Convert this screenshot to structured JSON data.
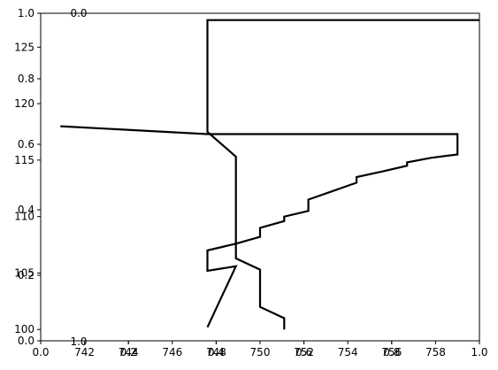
{
  "chart_data": {
    "type": "line",
    "title": "",
    "xlabel": "",
    "ylabel": "",
    "grid": false,
    "legend": "none",
    "line_color": "#000000",
    "axes_color": "#000000",
    "background": "#ffffff",
    "xlim": [
      740,
      760
    ],
    "ylim": [
      99,
      128
    ],
    "x_ticks": [
      742,
      744,
      746,
      748,
      750,
      752,
      754,
      756,
      758
    ],
    "y_ticks": [
      100,
      105,
      110,
      115,
      120,
      125
    ],
    "x_tick_labels": [
      "742",
      "744",
      "746",
      "748",
      "750",
      "752",
      "754",
      "756",
      "758"
    ],
    "y_tick_labels": [
      "100",
      "105",
      "110",
      "115",
      "120",
      "125"
    ],
    "overlay_axes": {
      "x_ticks": [
        0.0,
        0.2,
        0.4,
        0.6,
        0.8,
        1.0
      ],
      "y_ticks": [
        0.0,
        0.2,
        0.4,
        0.6,
        0.8,
        1.0
      ],
      "x_tick_labels": [
        "0.0",
        "0.2",
        "0.4",
        "0.6",
        "0.8",
        "1.0"
      ],
      "y_tick_labels": [
        "0.0",
        "0.2",
        "0.4",
        "0.6",
        "0.8",
        "1.0"
      ]
    },
    "stray_labels": [
      "0.0",
      "1.0"
    ],
    "series": [
      {
        "x": [
          767.7,
          747.6,
          747.6
        ],
        "y": [
          127.4,
          127.4,
          126.9
        ]
      },
      {
        "x": [
          740.9,
          747.6,
          751.1,
          759.0,
          759.0,
          757.8,
          756.7,
          756.7,
          755.6,
          754.4,
          754.4,
          752.2,
          752.2,
          751.1,
          751.1,
          750.0,
          750.0,
          748.9,
          748.9,
          747.6,
          747.6,
          748.9,
          748.9,
          747.6
        ],
        "y": [
          118.0,
          117.3,
          117.3,
          117.3,
          115.5,
          115.2,
          114.8,
          114.5,
          114.0,
          113.5,
          113.0,
          111.5,
          110.5,
          110.0,
          109.6,
          109.0,
          108.2,
          107.6,
          107.6,
          107.0,
          105.2,
          105.6,
          105.6,
          100.2
        ]
      },
      {
        "x": [
          747.6,
          747.6,
          748.9,
          748.9,
          750.0,
          750.0,
          751.1,
          751.1
        ],
        "y": [
          126.9,
          117.5,
          115.3,
          106.3,
          105.3,
          102.0,
          101.0,
          100.0
        ]
      }
    ]
  }
}
